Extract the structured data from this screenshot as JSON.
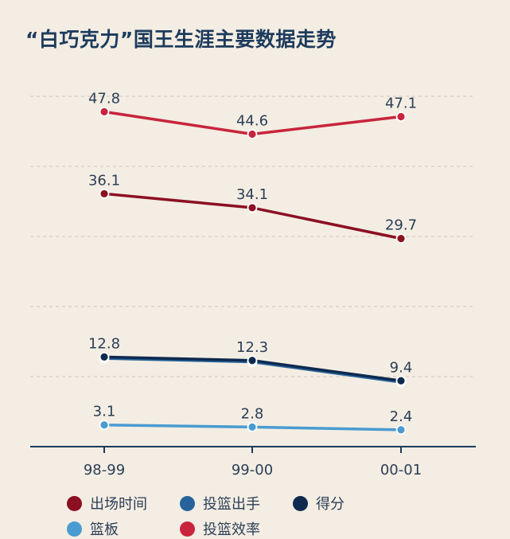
{
  "chart_data": {
    "type": "line",
    "title": "“白巧克力”国王生涯主要数据走势",
    "categories": [
      "98-99",
      "99-00",
      "00-01"
    ],
    "ylim": [
      0,
      50
    ],
    "grid": "horizontal-dashed",
    "legend_position": "bottom",
    "series": [
      {
        "name": "出场时间",
        "values": [
          36.1,
          34.1,
          29.7
        ],
        "color": "#8c0f22",
        "labels": [
          "36.1",
          "34.1",
          "29.7"
        ]
      },
      {
        "name": "投篮出手",
        "values": [
          12.6,
          12.1,
          9.2
        ],
        "color": "#27639a",
        "labels": null
      },
      {
        "name": "得分",
        "values": [
          12.8,
          12.3,
          9.4
        ],
        "color": "#0e2a4f",
        "labels": [
          "12.8",
          "12.3",
          "9.4"
        ]
      },
      {
        "name": "篮板",
        "values": [
          3.1,
          2.8,
          2.4
        ],
        "color": "#4a9bd1",
        "labels": [
          "3.1",
          "2.8",
          "2.4"
        ]
      },
      {
        "name": "投篮效率",
        "values": [
          47.8,
          44.6,
          47.1
        ],
        "color": "#c8243d",
        "labels": [
          "47.8",
          "44.6",
          "47.1"
        ]
      }
    ]
  }
}
